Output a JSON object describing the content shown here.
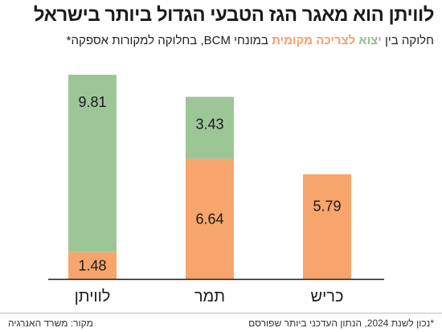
{
  "header": {
    "title": "לוויתן הוא מאגר הגז הטבעי הגדול ביותר בישראל",
    "subtitle_parts": {
      "p1": "חלוקה בין ",
      "export": "יצוא",
      "p2": " ",
      "local": "לצריכה מקומית",
      "p3": " במונחי BCM, בחלוקה למקורות אספקה*"
    }
  },
  "colors": {
    "export": "#9dc697",
    "local": "#f7a56d",
    "axis": "#1a1a1a"
  },
  "chart_data": {
    "type": "bar",
    "stacked": true,
    "categories": [
      "לוויתן",
      "תמר",
      "כריש"
    ],
    "series": [
      {
        "name": "לצריכה מקומית",
        "values": [
          1.48,
          6.64,
          5.79
        ]
      },
      {
        "name": "יצוא",
        "values": [
          9.81,
          3.43,
          0
        ]
      }
    ],
    "title": "לוויתן הוא מאגר הגז הטבעי הגדול ביותר בישראל",
    "ylim": [
      0,
      11.29
    ]
  },
  "footer": {
    "source": "מקור: משרד האנרגיה",
    "note": "*נכון לשנת 2024, הנתון העדכני ביותר שפורסם"
  }
}
